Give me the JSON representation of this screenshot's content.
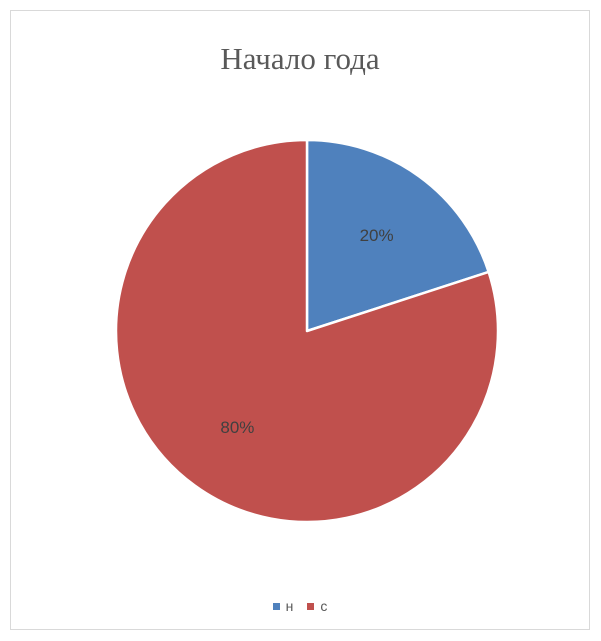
{
  "chart_data": {
    "type": "pie",
    "title": "Начало года",
    "categories": [
      "н",
      "с"
    ],
    "values": [
      20,
      80
    ],
    "data_labels": [
      "20%",
      "80%"
    ],
    "colors": [
      "#4f81bd",
      "#c0504d"
    ],
    "start_angle_deg": 0,
    "direction": "clockwise",
    "legend_position": "bottom"
  }
}
